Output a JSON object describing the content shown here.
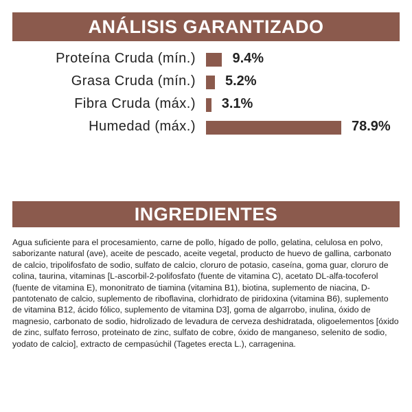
{
  "chart_data": {
    "type": "bar",
    "orientation": "horizontal",
    "title": "ANÁLISIS GARANTIZADO",
    "categories": [
      "Proteína Cruda (mín.)",
      "Grasa Cruda (mín.)",
      "Fibra Cruda (máx.)",
      "Humedad (máx.)"
    ],
    "values": [
      9.4,
      5.2,
      3.1,
      78.9
    ],
    "value_labels": [
      "9.4%",
      "5.2%",
      "3.1%",
      "78.9%"
    ],
    "color": "#8b5a4d"
  },
  "ingredients": {
    "title": "INGREDIENTES",
    "text": "Agua suficiente para el procesamiento, carne de pollo, hígado de pollo, gelatina, celulosa en polvo, saborizante natural (ave), aceite de pescado, aceite vegetal, producto de huevo de gallina, carbonato de calcio, tripolifosfato de sodio, sulfato de calcio, cloruro de potasio, caseína, goma guar, cloruro de colina, taurina, vitaminas [L-ascorbil-2-polifosfato (fuente de vitamina C), acetato DL-alfa-tocoferol (fuente de vitamina E), mononitrato de tiamina (vitamina B1), biotina, suplemento de niacina, D-pantotenato de calcio, suplemento de riboflavina, clorhidrato de piridoxina (vitamina B6), suplemento de vitamina B12, ácido fólico, suplemento de vitamina D3], goma de algarrobo, inulina, óxido de magnesio, carbonato de sodio, hidrolizado de levadura de cerveza deshidratada, oligoelementos [óxido de zinc, sulfato ferroso, proteinato de zinc, sulfato de cobre, óxido de manganeso, selenito de sodio, yodato de calcio], extracto de cempasúchil (Tagetes erecta L.), carragenina."
  }
}
